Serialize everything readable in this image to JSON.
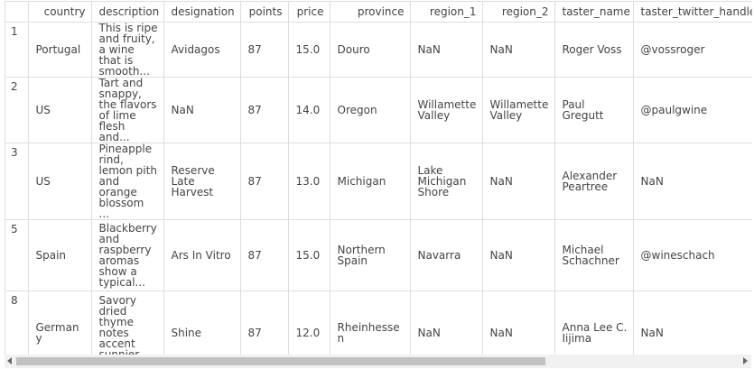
{
  "table": {
    "columns": [
      "country",
      "description",
      "designation",
      "points",
      "price",
      "province",
      "region_1",
      "region_2",
      "taster_name",
      "taster_twitter_handle"
    ],
    "rows": [
      {
        "index": "1",
        "cells": [
          "Portugal",
          "This is ripe and fruity, a wine that is smooth...",
          "Avidagos",
          "87",
          "15.0",
          "Douro",
          "NaN",
          "NaN",
          "Roger Voss",
          "@vossroger"
        ]
      },
      {
        "index": "2",
        "cells": [
          "US",
          "Tart and snappy, the flavors of lime flesh and...",
          "NaN",
          "87",
          "14.0",
          "Oregon",
          "Willamette Valley",
          "Willamette Valley",
          "Paul Gregutt",
          "@paulgwine"
        ]
      },
      {
        "index": "3",
        "cells": [
          "US",
          "Pineapple rind, lemon pith and orange blossom ...",
          "Reserve Late Harvest",
          "87",
          "13.0",
          "Michigan",
          "Lake Michigan Shore",
          "NaN",
          "Alexander Peartree",
          "NaN"
        ]
      },
      {
        "index": "5",
        "cells": [
          "Spain",
          "Blackberry and raspberry aromas show a typical...",
          "Ars In Vitro",
          "87",
          "15.0",
          "Northern Spain",
          "Navarra",
          "NaN",
          "Michael Schachner",
          "@wineschach"
        ]
      },
      {
        "index": "8",
        "cells": [
          "Germany",
          "Savory dried thyme notes accent sunnier flavor...",
          "Shine",
          "87",
          "12.0",
          "Rheinhessen",
          "NaN",
          "NaN",
          "Anna Lee C. Iijima",
          "NaN"
        ]
      }
    ]
  }
}
